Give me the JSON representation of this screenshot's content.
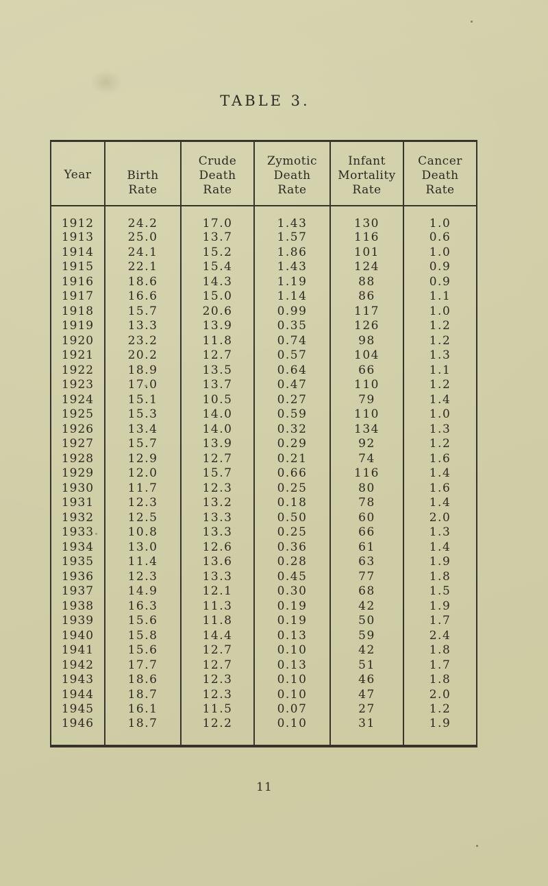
{
  "page": {
    "title": "TABLE 3.",
    "page_number": "11"
  },
  "colors": {
    "paper": "#d0cea7",
    "ink": "#2b2921",
    "line": "#35332a"
  },
  "table": {
    "columns": [
      {
        "id": "year",
        "lines": [
          "Year"
        ]
      },
      {
        "id": "birth-rate",
        "lines": [
          "Birth",
          "Rate"
        ]
      },
      {
        "id": "crude-death-rate",
        "lines": [
          "Crude",
          "Death",
          "Rate"
        ]
      },
      {
        "id": "zymotic-death-rate",
        "lines": [
          "Zymotic",
          "Death",
          "Rate"
        ]
      },
      {
        "id": "infant-mortality-rate",
        "lines": [
          "Infant",
          "Mortality",
          "Rate"
        ]
      },
      {
        "id": "cancer-death-rate",
        "lines": [
          "Cancer",
          "Death",
          "Rate"
        ]
      }
    ],
    "rows": [
      [
        "1912",
        "24.2",
        "17.0",
        "1.43",
        "130",
        "1.0"
      ],
      [
        "1913",
        "25.0",
        "13.7",
        "1.57",
        "116",
        "0.6"
      ],
      [
        "1914",
        "24.1",
        "15.2",
        "1.86",
        "101",
        "1.0"
      ],
      [
        "1915",
        "22.1",
        "15.4",
        "1.43",
        "124",
        "0.9"
      ],
      [
        "1916",
        "18.6",
        "14.3",
        "1.19",
        "88",
        "0.9"
      ],
      [
        "1917",
        "16.6",
        "15.0",
        "1.14",
        "86",
        "1.1"
      ],
      [
        "1918",
        "15.7",
        "20.6",
        "0.99",
        "117",
        "1.0"
      ],
      [
        "1919",
        "13.3",
        "13.9",
        "0.35",
        "126",
        "1.2"
      ],
      [
        "1920",
        "23.2",
        "11.8",
        "0.74",
        "98",
        "1.2"
      ],
      [
        "1921",
        "20.2",
        "12.7",
        "0.57",
        "104",
        "1.3"
      ],
      [
        "1922",
        "18.9",
        "13.5",
        "0.64",
        "66",
        "1.1"
      ],
      [
        "1923",
        "17.0",
        "13.7",
        "0.47",
        "110",
        "1.2"
      ],
      [
        "1924",
        "15.1",
        "10.5",
        "0.27",
        "79",
        "1.4"
      ],
      [
        "1925",
        "15.3",
        "14.0",
        "0.59",
        "110",
        "1.0"
      ],
      [
        "1926",
        "13.4",
        "14.0",
        "0.32",
        "134",
        "1.3"
      ],
      [
        "1927",
        "15.7",
        "13.9",
        "0.29",
        "92",
        "1.2"
      ],
      [
        "1928",
        "12.9",
        "12.7",
        "0.21",
        "74",
        "1.6"
      ],
      [
        "1929",
        "12.0",
        "15.7",
        "0.66",
        "116",
        "1.4"
      ],
      [
        "1930",
        "11.7",
        "12.3",
        "0.25",
        "80",
        "1.6"
      ],
      [
        "1931",
        "12.3",
        "13.2",
        "0.18",
        "78",
        "1.4"
      ],
      [
        "1932",
        "12.5",
        "13.3",
        "0.50",
        "60",
        "2.0"
      ],
      [
        "1933",
        "10.8",
        "13.3",
        "0.25",
        "66",
        "1.3"
      ],
      [
        "1934",
        "13.0",
        "12.6",
        "0.36",
        "61",
        "1.4"
      ],
      [
        "1935",
        "11.4",
        "13.6",
        "0.28",
        "63",
        "1.9"
      ],
      [
        "1936",
        "12.3",
        "13.3",
        "0.45",
        "77",
        "1.8"
      ],
      [
        "1937",
        "14.9",
        "12.1",
        "0.30",
        "68",
        "1.5"
      ],
      [
        "1938",
        "16.3",
        "11.3",
        "0.19",
        "42",
        "1.9"
      ],
      [
        "1939",
        "15.6",
        "11.8",
        "0.19",
        "50",
        "1.7"
      ],
      [
        "1940",
        "15.8",
        "14.4",
        "0.13",
        "59",
        "2.4"
      ],
      [
        "1941",
        "15.6",
        "12.7",
        "0.10",
        "42",
        "1.8"
      ],
      [
        "1942",
        "17.7",
        "12.7",
        "0.13",
        "51",
        "1.7"
      ],
      [
        "1943",
        "18.6",
        "12.3",
        "0.10",
        "46",
        "1.8"
      ],
      [
        "1944",
        "18.7",
        "12.3",
        "0.10",
        "47",
        "2.0"
      ],
      [
        "1945",
        "16.1",
        "11.5",
        "0.07",
        "27",
        "1.2"
      ],
      [
        "1946",
        "18.7",
        "12.2",
        "0.10",
        "31",
        "1.9"
      ]
    ]
  }
}
